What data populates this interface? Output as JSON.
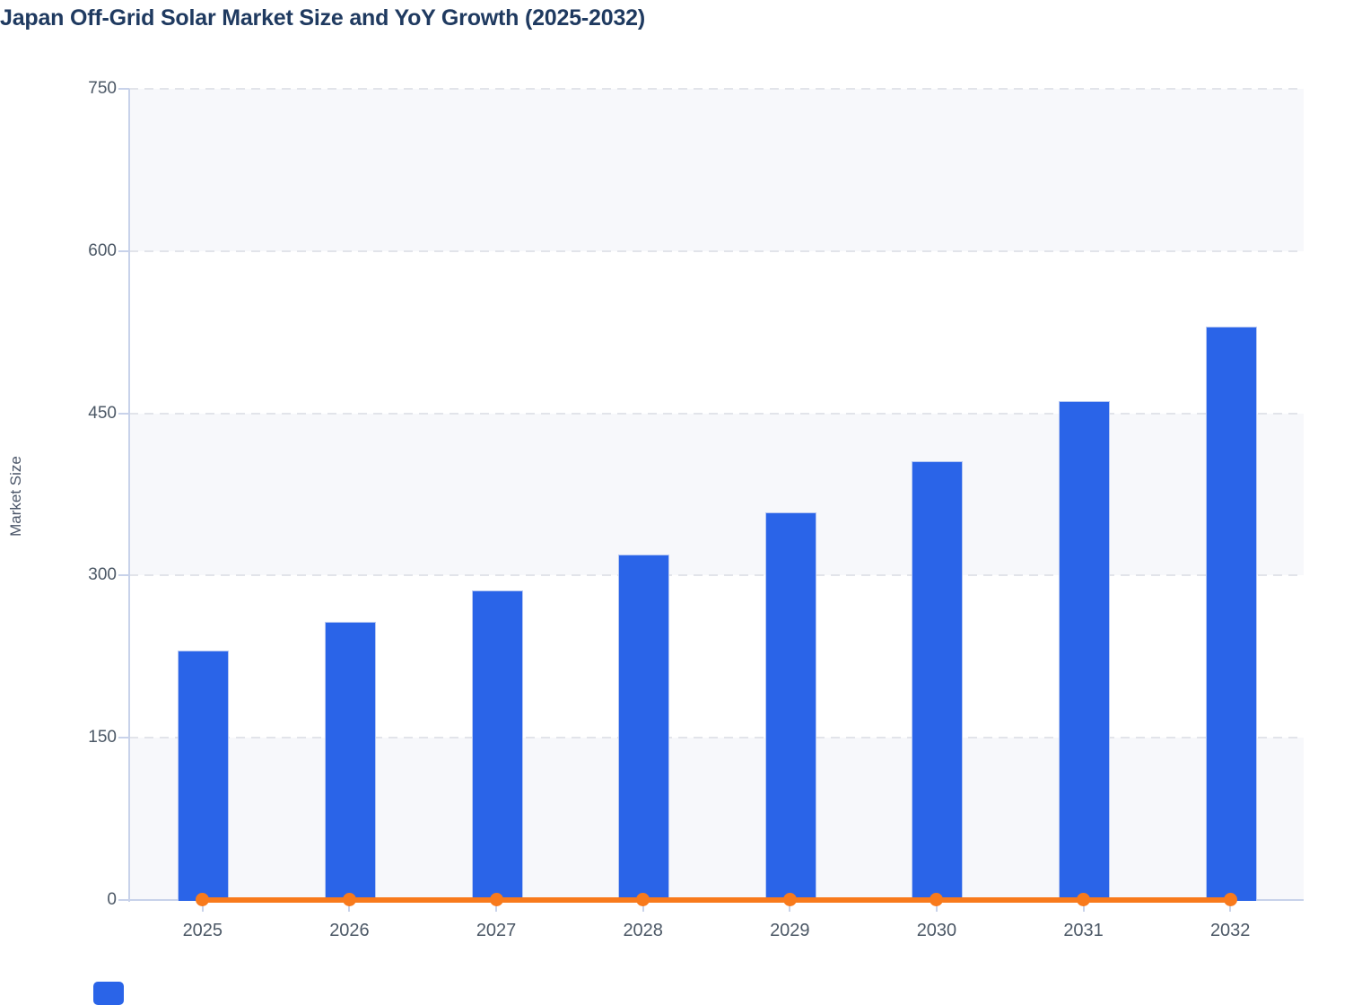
{
  "page": {
    "title": "Japan Off-Grid Solar Market Size and YoY Growth (2025-2032)"
  },
  "axes": {
    "y_label": "Market Size",
    "y_tick_labels": [
      "0",
      "150",
      "300",
      "450",
      "600",
      "750"
    ],
    "x_tick_labels": [
      "2025",
      "2026",
      "2027",
      "2028",
      "2029",
      "2030",
      "2031",
      "2032"
    ]
  },
  "chart_data": {
    "type": "bar",
    "title": "Japan Off-Grid Solar Market Size and YoY Growth (2025-2032)",
    "categories": [
      "2025",
      "2026",
      "2027",
      "2028",
      "2029",
      "2030",
      "2031",
      "2032"
    ],
    "series": [
      {
        "name": "Market Size",
        "type": "bar",
        "color": "#2a64e8",
        "values": [
          231,
          257,
          286,
          319,
          358,
          406,
          461,
          530
        ]
      },
      {
        "name": "YoY Growth",
        "type": "line",
        "color": "#f87a1c",
        "values": [
          0,
          0,
          0,
          0,
          0,
          0,
          0,
          0
        ]
      }
    ],
    "xlabel": "",
    "ylabel": "Market Size",
    "ylim": [
      0,
      750
    ],
    "yticks": [
      0,
      150,
      300,
      450,
      600,
      750
    ],
    "grid": "dashed horizontal gridlines, alternating row background bands",
    "legend": "none (partially cut-off swatch at bottom-left)"
  },
  "colors": {
    "bar": "#2a64e8",
    "bar_border": "#b7c8f2",
    "line": "#f87a1c",
    "title_text": "#1f3a60",
    "tick_text": "#4c5866",
    "axis": "#c8d2ea",
    "grid": "#e2e4ea",
    "band": "#f7f8fb"
  }
}
